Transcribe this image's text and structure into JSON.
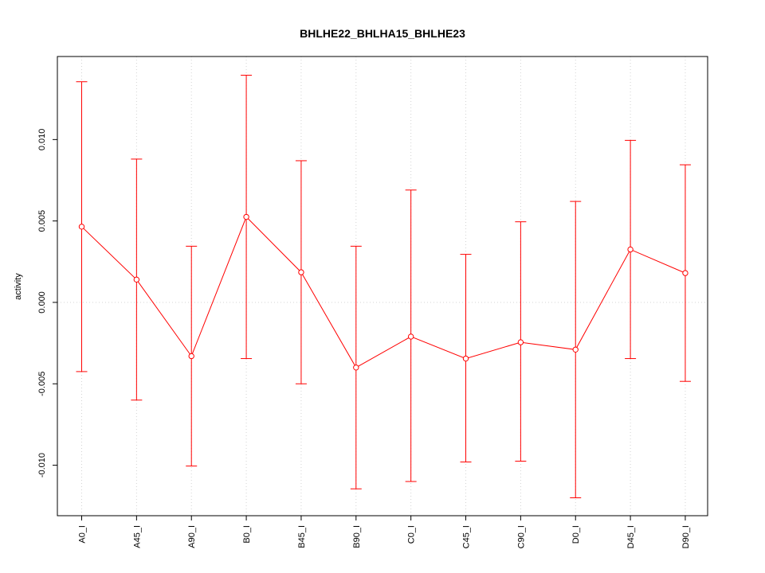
{
  "chart_data": {
    "type": "line",
    "title": "BHLHE22_BHLHA15_BHLHE23",
    "xlabel": "",
    "ylabel": "activity",
    "categories": [
      "A0_I",
      "A45_I",
      "A90_I",
      "B0_I",
      "B45_I",
      "B90_I",
      "C0_I",
      "C45_I",
      "C90_I",
      "D0_I",
      "D45_I",
      "D90_I"
    ],
    "series": [
      {
        "values": [
          0.00465,
          0.0014,
          -0.0033,
          0.00525,
          0.00185,
          -0.004,
          -0.0021,
          -0.00345,
          -0.00245,
          -0.0029,
          0.00325,
          0.0018
        ],
        "upper": [
          0.01355,
          0.0088,
          0.00345,
          0.01395,
          0.0087,
          0.00345,
          0.0069,
          0.00295,
          0.00495,
          0.0062,
          0.00995,
          0.00845
        ],
        "lower": [
          -0.00425,
          -0.006,
          -0.01005,
          -0.00345,
          -0.005,
          -0.01145,
          -0.011,
          -0.0098,
          -0.00975,
          -0.012,
          -0.00345,
          -0.00485
        ]
      }
    ],
    "ylim": [
      -0.0131,
      0.0151
    ],
    "yticks": [
      -0.01,
      -0.005,
      0.0,
      0.005,
      0.01
    ],
    "ytick_labels": [
      "-0.010",
      "-0.005",
      "0.000",
      "0.005",
      "0.010"
    ],
    "grid": true,
    "colors": {
      "series": "#ff0000",
      "grid": "#d3d3d3",
      "axis": "#000000"
    }
  }
}
